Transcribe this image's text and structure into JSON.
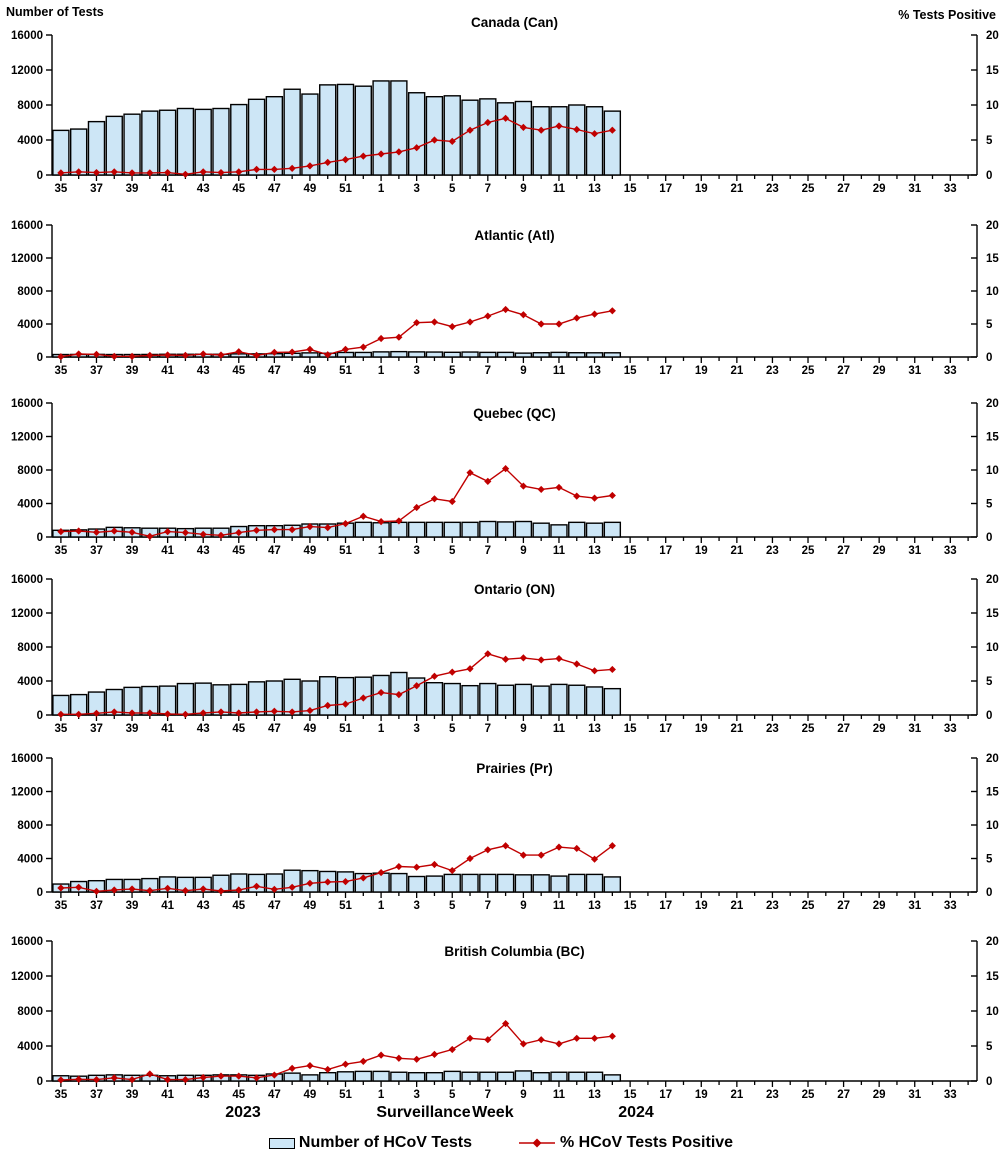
{
  "header": {
    "left_axis_title": "Number of Tests",
    "right_axis_title": "% Tests Positive"
  },
  "footer": {
    "year_left": "2023",
    "axis_title": "Surveillance Week",
    "year_right": "2024"
  },
  "legend": {
    "bar_label": "Number of HCoV Tests",
    "line_label": "% HCoV Tests Positive"
  },
  "colors": {
    "bar_fill": "#CDE6F6",
    "bar_stroke": "#000000",
    "line": "#C00000",
    "text": "#000000"
  },
  "chart_data": {
    "type": "bar+line",
    "title": "HCoV tests and percent positive by surveillance week, Canada and regions, 2023-2024",
    "x_axis_label": "Surveillance Week",
    "left_axis": {
      "title": "Number of Tests",
      "ticks": [
        0,
        4000,
        8000,
        12000,
        16000
      ],
      "max": 16000
    },
    "right_axis": {
      "title": "% Tests Positive",
      "ticks": [
        0,
        5,
        10,
        15,
        20
      ],
      "max": 20
    },
    "x_tick_labels": [
      "35",
      "37",
      "39",
      "41",
      "43",
      "45",
      "47",
      "49",
      "51",
      "1",
      "3",
      "5",
      "7",
      "9",
      "11",
      "13",
      "15",
      "17",
      "19",
      "21",
      "23",
      "25",
      "27",
      "29",
      "31",
      "33"
    ],
    "weeks_with_data": [
      35,
      36,
      37,
      38,
      39,
      40,
      41,
      42,
      43,
      44,
      45,
      46,
      47,
      48,
      49,
      50,
      51,
      52,
      1,
      2,
      3,
      4,
      5,
      6,
      7,
      8,
      9,
      10,
      11,
      12,
      13,
      14
    ],
    "series_names": [
      "Number of HCoV Tests",
      "% HCoV Tests Positive"
    ],
    "panels": [
      {
        "title": "Canada (Can)",
        "bars": [
          5100,
          5250,
          6100,
          6700,
          6950,
          7300,
          7400,
          7600,
          7500,
          7600,
          8050,
          8650,
          8950,
          9800,
          9250,
          10300,
          10350,
          10150,
          10750,
          10750,
          9400,
          8950,
          9050,
          8550,
          8700,
          8250,
          8400,
          7800,
          7800,
          8000,
          7800,
          7300
        ],
        "pct_positive": [
          0.3,
          0.45,
          0.35,
          0.45,
          0.3,
          0.3,
          0.35,
          0.1,
          0.45,
          0.35,
          0.45,
          0.8,
          0.8,
          0.95,
          1.3,
          1.8,
          2.2,
          2.7,
          3.0,
          3.3,
          3.9,
          5.0,
          4.8,
          6.4,
          7.5,
          8.1,
          6.8,
          6.4,
          7.0,
          6.5,
          5.9,
          6.4
        ]
      },
      {
        "title": "Atlantic (Atl)",
        "bars": [
          300,
          310,
          320,
          300,
          300,
          310,
          330,
          330,
          340,
          330,
          380,
          380,
          400,
          450,
          500,
          450,
          550,
          550,
          620,
          650,
          620,
          600,
          570,
          600,
          560,
          560,
          470,
          520,
          560,
          520,
          510,
          510
        ],
        "pct_positive": [
          0.05,
          0.45,
          0.4,
          0.1,
          0.1,
          0.25,
          0.3,
          0.25,
          0.45,
          0.3,
          0.8,
          0.25,
          0.7,
          0.75,
          1.15,
          0.35,
          1.15,
          1.5,
          2.8,
          3.0,
          5.2,
          5.3,
          4.6,
          5.3,
          6.2,
          7.2,
          6.4,
          5.0,
          5.0,
          5.9,
          6.5,
          7.0
        ]
      },
      {
        "title": "Quebec (QC)",
        "bars": [
          800,
          850,
          950,
          1150,
          1100,
          1050,
          1050,
          1000,
          1050,
          1050,
          1250,
          1350,
          1350,
          1400,
          1550,
          1550,
          1650,
          1750,
          1700,
          1750,
          1750,
          1750,
          1750,
          1750,
          1850,
          1800,
          1850,
          1650,
          1450,
          1750,
          1650,
          1750
        ],
        "pct_positive": [
          0.8,
          0.9,
          0.7,
          0.9,
          0.7,
          0.1,
          0.8,
          0.65,
          0.4,
          0.25,
          0.65,
          1.0,
          1.1,
          1.1,
          1.55,
          1.4,
          2.0,
          3.1,
          2.3,
          2.4,
          4.4,
          5.7,
          5.3,
          9.6,
          8.3,
          10.2,
          7.6,
          7.1,
          7.4,
          6.1,
          5.8,
          6.2
        ]
      },
      {
        "title": "Ontario (ON)",
        "bars": [
          2300,
          2400,
          2700,
          3000,
          3250,
          3350,
          3400,
          3700,
          3750,
          3550,
          3600,
          3900,
          4000,
          4200,
          4000,
          4500,
          4400,
          4450,
          4650,
          5000,
          4350,
          3800,
          3700,
          3450,
          3700,
          3500,
          3600,
          3400,
          3600,
          3500,
          3300,
          3100
        ],
        "pct_positive": [
          0.1,
          0.1,
          0.25,
          0.45,
          0.3,
          0.3,
          0.15,
          0.1,
          0.3,
          0.45,
          0.3,
          0.45,
          0.55,
          0.45,
          0.65,
          1.4,
          1.6,
          2.5,
          3.3,
          3.0,
          4.3,
          5.7,
          6.3,
          6.8,
          9.0,
          8.2,
          8.4,
          8.1,
          8.3,
          7.5,
          6.5,
          6.7
        ]
      },
      {
        "title": "Prairies (Pr)",
        "bars": [
          950,
          1250,
          1350,
          1500,
          1500,
          1600,
          1800,
          1750,
          1750,
          2000,
          2150,
          2100,
          2150,
          2600,
          2550,
          2450,
          2400,
          2200,
          2250,
          2200,
          1850,
          1900,
          2100,
          2100,
          2100,
          2100,
          2050,
          2050,
          1900,
          2100,
          2100,
          1800
        ],
        "pct_positive": [
          0.6,
          0.7,
          0.1,
          0.3,
          0.45,
          0.2,
          0.55,
          0.2,
          0.45,
          0.15,
          0.3,
          0.85,
          0.4,
          0.7,
          1.3,
          1.5,
          1.55,
          2.1,
          2.9,
          3.8,
          3.7,
          4.1,
          3.2,
          5.0,
          6.3,
          6.9,
          5.5,
          5.5,
          6.7,
          6.5,
          4.9,
          6.9
        ]
      },
      {
        "title": "British Columbia (BC)",
        "bars": [
          600,
          550,
          650,
          700,
          650,
          650,
          600,
          650,
          650,
          700,
          700,
          650,
          800,
          900,
          700,
          950,
          1050,
          1100,
          1100,
          1000,
          950,
          950,
          1100,
          1000,
          1000,
          1000,
          1150,
          950,
          1000,
          1000,
          1000,
          700
        ],
        "pct_positive": [
          0.15,
          0.25,
          0.2,
          0.45,
          0.2,
          1.0,
          0.2,
          0.2,
          0.5,
          0.7,
          0.7,
          0.45,
          0.85,
          1.8,
          2.2,
          1.65,
          2.4,
          2.8,
          3.7,
          3.25,
          3.1,
          3.8,
          4.5,
          6.1,
          5.9,
          8.2,
          5.3,
          5.9,
          5.3,
          6.1,
          6.1,
          6.4
        ]
      }
    ]
  }
}
